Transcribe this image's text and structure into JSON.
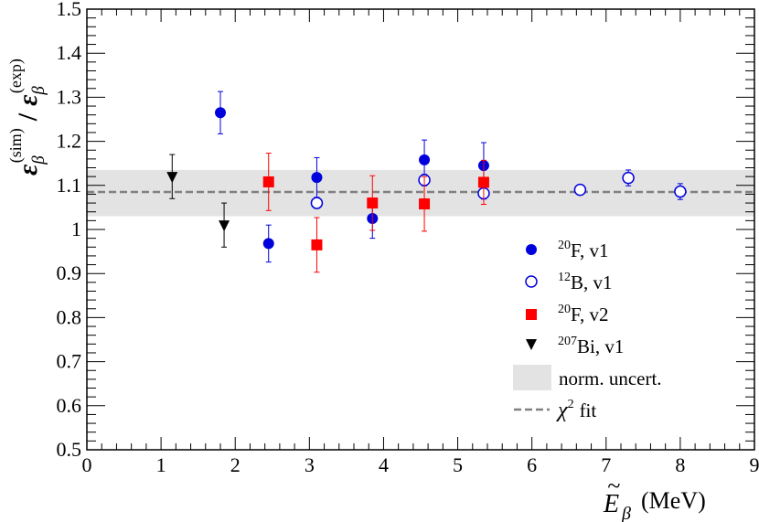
{
  "chart_data": {
    "type": "scatter",
    "title": "",
    "xlabel": "(MeV)",
    "xlabel_symbol": "E",
    "xlabel_subscript": "β",
    "xlabel_accent": "~",
    "ylabel_numerator": "ε",
    "ylabel_numerator_sub": "β",
    "ylabel_numerator_sup": "(sim)",
    "ylabel_separator": "/",
    "ylabel_denominator": "ε",
    "ylabel_denominator_sub": "β",
    "ylabel_denominator_sup": "(exp)",
    "xlim": [
      0,
      9
    ],
    "ylim": [
      0.5,
      1.5
    ],
    "x_ticks": [
      0,
      1,
      2,
      3,
      4,
      5,
      6,
      7,
      8,
      9
    ],
    "x_tick_labels": [
      "0",
      "1",
      "2",
      "3",
      "4",
      "5",
      "6",
      "7",
      "8",
      "9"
    ],
    "y_ticks": [
      0.5,
      0.6,
      0.7,
      0.8,
      0.9,
      1.0,
      1.1,
      1.2,
      1.3,
      1.4,
      1.5
    ],
    "y_tick_labels": [
      "0.5",
      "0.6",
      "0.7",
      "0.8",
      "0.9",
      "1",
      "1.1",
      "1.2",
      "1.3",
      "1.4",
      "1.5"
    ],
    "grid": false,
    "legend_position": "right",
    "band": {
      "name": "norm. uncert.",
      "y_low": 1.03,
      "y_high": 1.135,
      "color": "#e3e3e3"
    },
    "fit": {
      "name": "fit",
      "name_prefix": "χ",
      "name_sup": "2",
      "value": 1.085,
      "color": "#808080"
    },
    "series": [
      {
        "name": "F, v1",
        "name_sup": "20",
        "marker": "filled-circle",
        "color": "#0000dd",
        "points": [
          {
            "x": 1.8,
            "y": 1.265,
            "err": 0.048
          },
          {
            "x": 2.45,
            "y": 0.968,
            "err": 0.042
          },
          {
            "x": 3.1,
            "y": 1.118,
            "err": 0.045
          },
          {
            "x": 3.85,
            "y": 1.025,
            "err": 0.045
          },
          {
            "x": 4.55,
            "y": 1.158,
            "err": 0.045
          },
          {
            "x": 5.35,
            "y": 1.145,
            "err": 0.052
          }
        ]
      },
      {
        "name": "B, v1",
        "name_sup": "12",
        "marker": "open-circle",
        "color": "#0000dd",
        "points": [
          {
            "x": 3.1,
            "y": 1.06,
            "err": 0.012
          },
          {
            "x": 4.55,
            "y": 1.112,
            "err": 0.013
          },
          {
            "x": 5.35,
            "y": 1.082,
            "err": 0.013
          },
          {
            "x": 6.65,
            "y": 1.09,
            "err": 0.01
          },
          {
            "x": 7.3,
            "y": 1.117,
            "err": 0.018
          },
          {
            "x": 8.0,
            "y": 1.086,
            "err": 0.018
          }
        ]
      },
      {
        "name": "F, v2",
        "name_sup": "20",
        "marker": "filled-square",
        "color": "#ff0000",
        "points": [
          {
            "x": 2.45,
            "y": 1.108,
            "err": 0.065
          },
          {
            "x": 3.1,
            "y": 0.965,
            "err": 0.062
          },
          {
            "x": 3.85,
            "y": 1.06,
            "err": 0.062
          },
          {
            "x": 4.55,
            "y": 1.058,
            "err": 0.062
          },
          {
            "x": 5.35,
            "y": 1.107,
            "err": 0.05
          }
        ]
      },
      {
        "name": "Bi, v1",
        "name_sup": "207",
        "marker": "filled-triangle-down",
        "color": "#000000",
        "points": [
          {
            "x": 1.15,
            "y": 1.12,
            "err": 0.05
          },
          {
            "x": 1.85,
            "y": 1.01,
            "err": 0.05
          }
        ]
      }
    ]
  }
}
